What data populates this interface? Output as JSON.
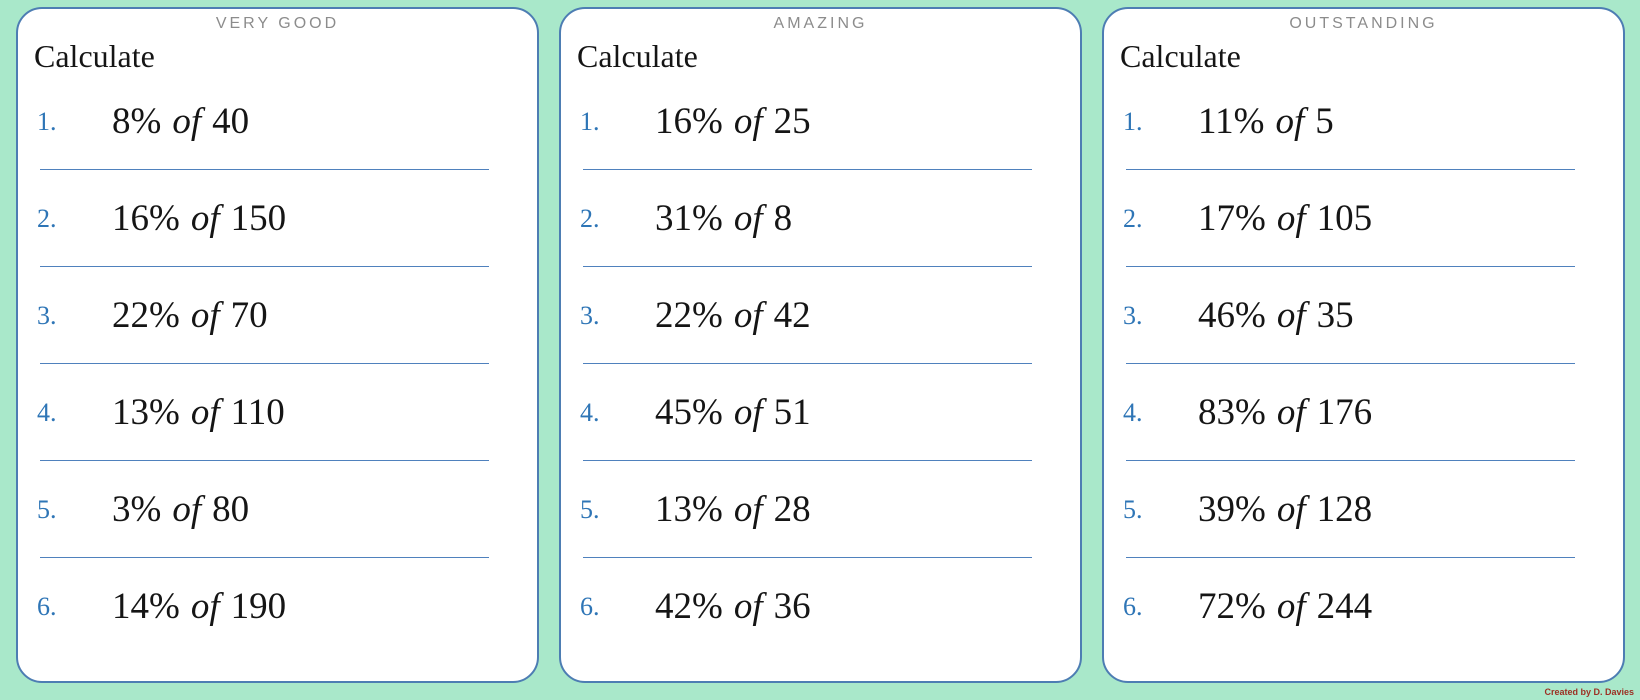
{
  "page": {
    "credit": "Created by D. Davies",
    "colors": {
      "background": "#a9e8ca",
      "card_border": "#4d7db3",
      "divider": "#4f81bd",
      "number": "#2e75b6",
      "header_gray": "#8c8c8c",
      "credit_red": "#9c2f23"
    }
  },
  "cards": [
    {
      "header": "VERY GOOD",
      "title": "Calculate",
      "problems": [
        {
          "n": "1.",
          "pct": "8%",
          "conj": "of",
          "val": "40"
        },
        {
          "n": "2.",
          "pct": "16%",
          "conj": "of",
          "val": "150"
        },
        {
          "n": "3.",
          "pct": "22%",
          "conj": "of",
          "val": "70"
        },
        {
          "n": "4.",
          "pct": "13%",
          "conj": "of",
          "val": "110"
        },
        {
          "n": "5.",
          "pct": "3%",
          "conj": "of",
          "val": "80"
        },
        {
          "n": "6.",
          "pct": "14%",
          "conj": "of",
          "val": "190"
        }
      ]
    },
    {
      "header": "AMAZING",
      "title": "Calculate",
      "problems": [
        {
          "n": "1.",
          "pct": "16%",
          "conj": "of",
          "val": "25"
        },
        {
          "n": "2.",
          "pct": "31%",
          "conj": "of",
          "val": "8"
        },
        {
          "n": "3.",
          "pct": "22%",
          "conj": "of",
          "val": "42"
        },
        {
          "n": "4.",
          "pct": "45%",
          "conj": "of",
          "val": "51"
        },
        {
          "n": "5.",
          "pct": "13%",
          "conj": "of",
          "val": "28"
        },
        {
          "n": "6.",
          "pct": "42%",
          "conj": "of",
          "val": "36"
        }
      ]
    },
    {
      "header": "OUTSTANDING",
      "title": "Calculate",
      "problems": [
        {
          "n": "1.",
          "pct": "11%",
          "conj": "of",
          "val": "5"
        },
        {
          "n": "2.",
          "pct": "17%",
          "conj": "of",
          "val": "105"
        },
        {
          "n": "3.",
          "pct": "46%",
          "conj": "of",
          "val": "35"
        },
        {
          "n": "4.",
          "pct": "83%",
          "conj": "of",
          "val": "176"
        },
        {
          "n": "5.",
          "pct": "39%",
          "conj": "of",
          "val": "128"
        },
        {
          "n": "6.",
          "pct": "72%",
          "conj": "of",
          "val": "244"
        }
      ]
    }
  ]
}
